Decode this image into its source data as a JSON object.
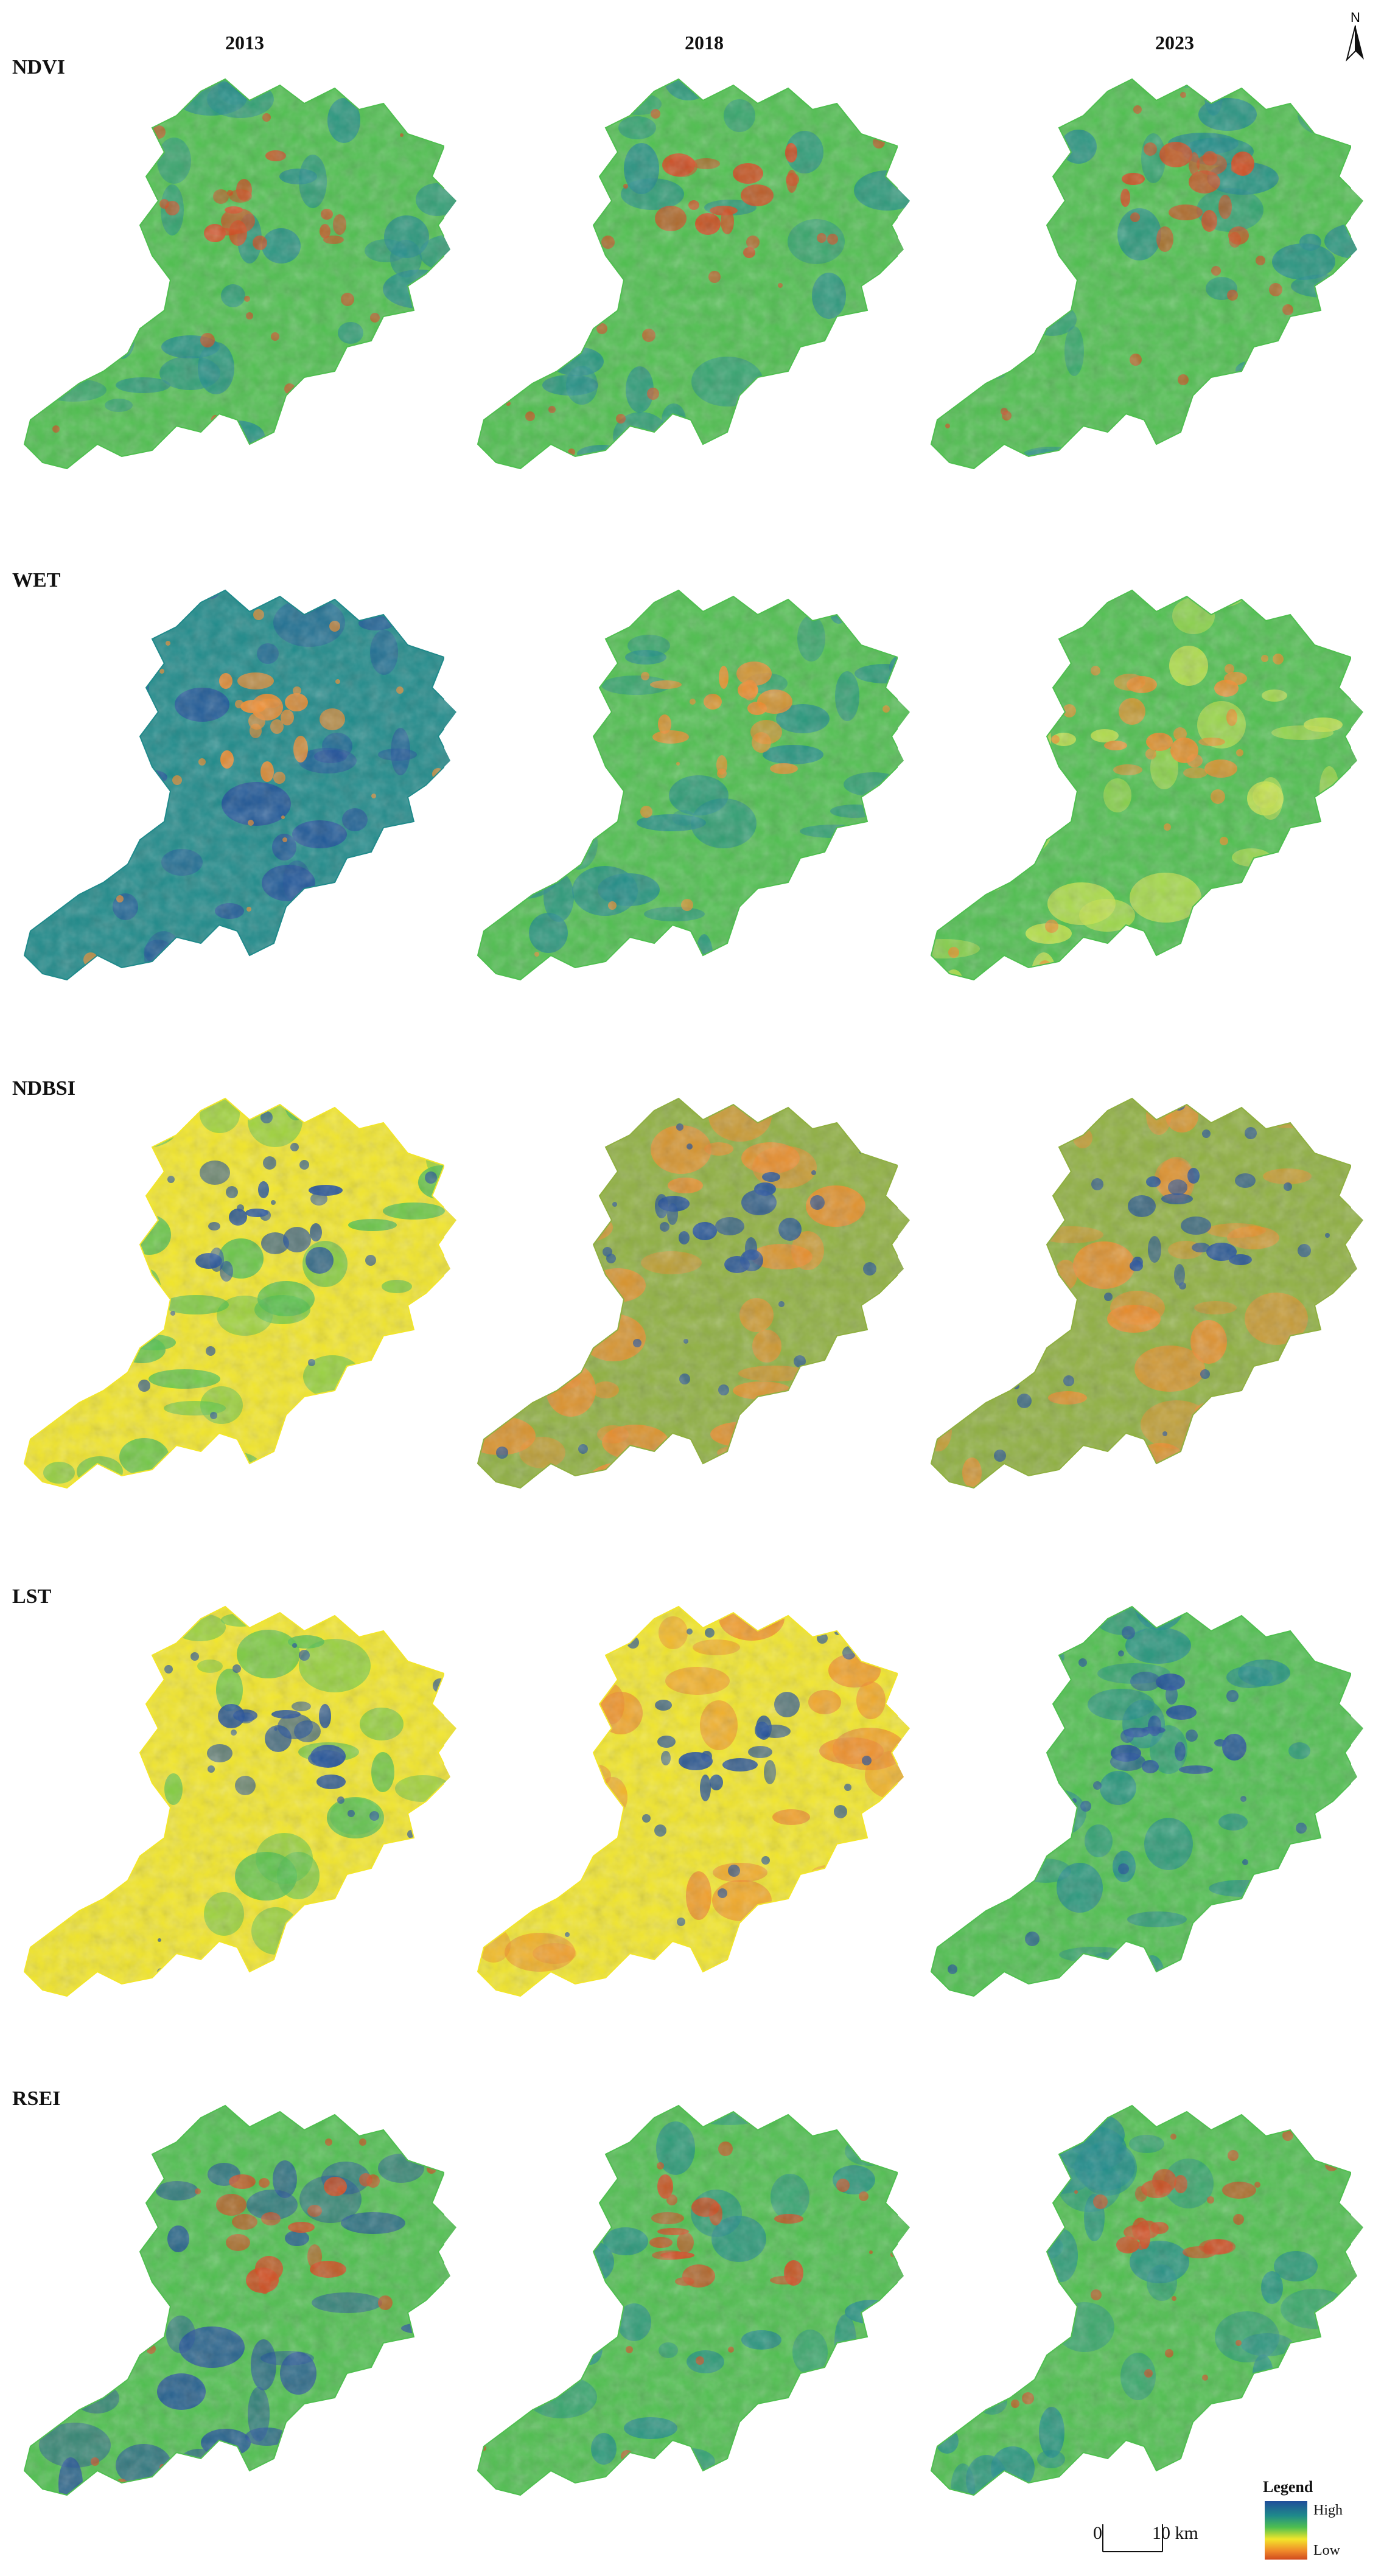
{
  "years": [
    "2013",
    "2018",
    "2023"
  ],
  "rows": [
    "NDVI",
    "WET",
    "NDBSI",
    "LST",
    "RSEI"
  ],
  "north_label": "N",
  "legend": {
    "title": "Legend",
    "high": "High",
    "low": "Low",
    "colors": [
      "#1f4e9a",
      "#1f8a8a",
      "#4fbf4f",
      "#c8e34a",
      "#f2e62a",
      "#f08a2a",
      "#d04a1e"
    ]
  },
  "scale": {
    "zero": "0",
    "ten": "10 km"
  },
  "palette": {
    "blue": "#1f4e9a",
    "teal": "#1f8a8a",
    "green": "#4fbf4f",
    "lime": "#c8e34a",
    "yellow": "#f2e62a",
    "orange": "#f08a2a",
    "red": "#d04a1e",
    "olive": "#8fb040"
  }
}
